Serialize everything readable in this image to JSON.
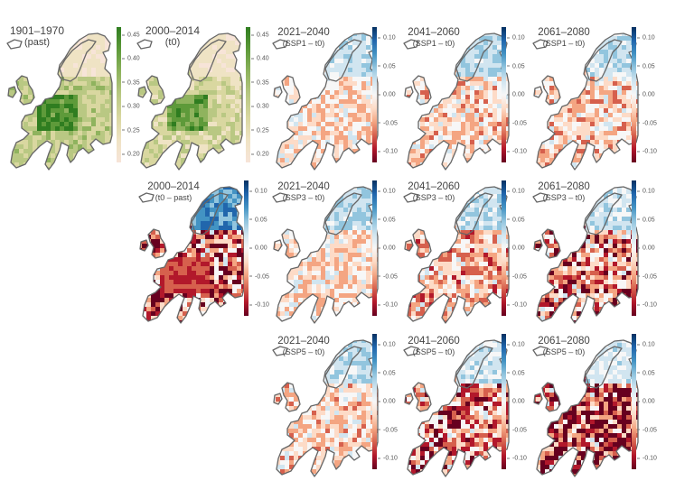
{
  "colors": {
    "green_scale": [
      "#f7e4d8",
      "#efe3c4",
      "#d9d7a0",
      "#b9c883",
      "#8fb35e",
      "#5e9a3a",
      "#2f7d20"
    ],
    "diverging_scale": [
      "#67001f",
      "#b2182b",
      "#d6604d",
      "#f4a582",
      "#fddbc7",
      "#f7f7f7",
      "#d1e5f0",
      "#92c5de",
      "#4393c3",
      "#2166ac",
      "#053061"
    ],
    "coastline": "#666666"
  },
  "panels": [
    {
      "id": "past",
      "title": "1901–1970",
      "subtitle": "(past)",
      "scale": "green",
      "ticks": [
        "0.45",
        "0.40",
        "0.35",
        "0.30",
        "0.25",
        "0.20"
      ],
      "level": 0.55
    },
    {
      "id": "t0",
      "title": "2000–2014",
      "subtitle": "(t0)",
      "scale": "green",
      "ticks": [
        "0.45",
        "0.40",
        "0.35",
        "0.30",
        "0.25",
        "0.20"
      ],
      "level": 0.45
    },
    {
      "id": "ssp1-2021",
      "title": "2021–2040",
      "subtitle": "(SSP1 – t0)",
      "scale": "diverging",
      "ticks": [
        "0.10",
        "0.05",
        "0.00",
        "-0.05",
        "-0.10"
      ],
      "level": -0.015
    },
    {
      "id": "ssp1-2041",
      "title": "2041–2060",
      "subtitle": "(SSP1 – t0)",
      "scale": "diverging",
      "ticks": [
        "0.10",
        "0.05",
        "0.00",
        "-0.05",
        "-0.10"
      ],
      "level": -0.02
    },
    {
      "id": "ssp1-2061",
      "title": "2061–2080",
      "subtitle": "(SSP1 – t0)",
      "scale": "diverging",
      "ticks": [
        "0.10",
        "0.05",
        "0.00",
        "-0.05",
        "-0.10"
      ],
      "level": -0.02
    },
    {
      "id": "t0-past",
      "title": "2000–2014",
      "subtitle": "(t0 – past)",
      "scale": "diverging",
      "ticks": [
        "0.10",
        "0.05",
        "0.00",
        "-0.05",
        "-0.10"
      ],
      "level": -0.06
    },
    {
      "id": "ssp3-2021",
      "title": "2021–2040",
      "subtitle": "(SSP3 – t0)",
      "scale": "diverging",
      "ticks": [
        "0.10",
        "0.05",
        "0.00",
        "-0.05",
        "-0.10"
      ],
      "level": -0.015
    },
    {
      "id": "ssp3-2041",
      "title": "2041–2060",
      "subtitle": "(SSP3 – t0)",
      "scale": "diverging",
      "ticks": [
        "0.10",
        "0.05",
        "0.00",
        "-0.05",
        "-0.10"
      ],
      "level": -0.03
    },
    {
      "id": "ssp3-2061",
      "title": "2061–2080",
      "subtitle": "(SSP3 – t0)",
      "scale": "diverging",
      "ticks": [
        "0.10",
        "0.05",
        "0.00",
        "-0.05",
        "-0.10"
      ],
      "level": -0.045
    },
    {
      "id": "ssp5-2021",
      "title": "2021–2040",
      "subtitle": "(SSP5 – t0)",
      "scale": "diverging",
      "ticks": [
        "0.10",
        "0.05",
        "0.00",
        "-0.05",
        "-0.10"
      ],
      "level": -0.02
    },
    {
      "id": "ssp5-2041",
      "title": "2041–2060",
      "subtitle": "(SSP5 – t0)",
      "scale": "diverging",
      "ticks": [
        "0.10",
        "0.05",
        "0.00",
        "-0.05",
        "-0.10"
      ],
      "level": -0.045
    },
    {
      "id": "ssp5-2061",
      "title": "2061–2080",
      "subtitle": "(SSP5 – t0)",
      "scale": "diverging",
      "ticks": [
        "0.10",
        "0.05",
        "0.00",
        "-0.05",
        "-0.10"
      ],
      "level": -0.075
    }
  ]
}
